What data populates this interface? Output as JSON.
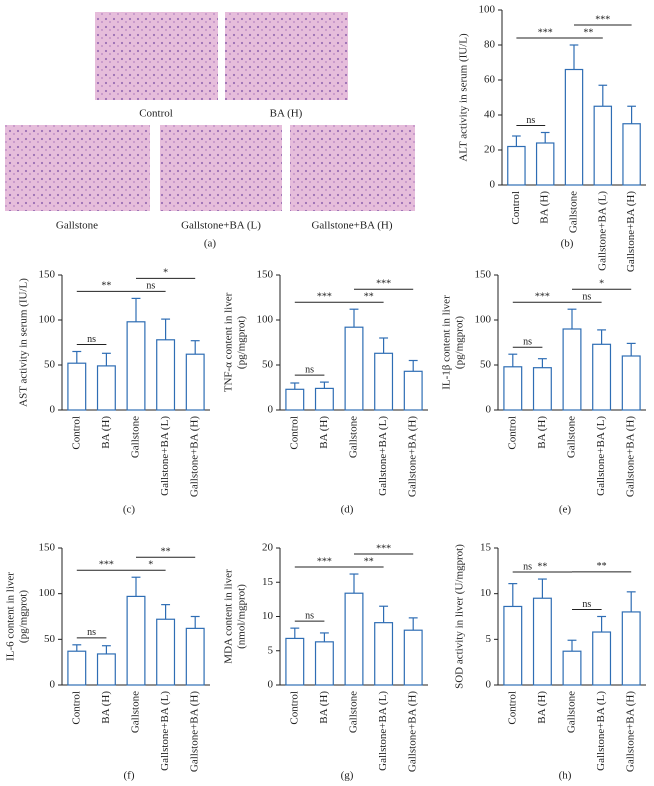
{
  "panel_a": {
    "images": [
      "Control",
      "BA (H)",
      "Gallstone",
      "Gallstone+BA (L)",
      "Gallstone+BA (H)"
    ],
    "caption": "(a)"
  },
  "chart_data": [
    {
      "type": "bar",
      "caption": "(b)",
      "ylabel": [
        "ALT activity in serum (IU/L)"
      ],
      "categories": [
        "Control",
        "BA (H)",
        "Gallstone",
        "Gallstone+BA (L)",
        "Gallstone+BA (H)"
      ],
      "values": [
        22,
        24,
        66,
        45,
        35
      ],
      "errors": [
        6,
        6,
        14,
        12,
        10
      ],
      "ylim": [
        0,
        100
      ],
      "yticks": [
        0,
        20,
        40,
        60,
        80,
        100
      ],
      "significance": [
        "ns",
        "***",
        "**",
        "***"
      ],
      "color": "#2e6db4"
    },
    {
      "type": "bar",
      "caption": "(c)",
      "ylabel": [
        "AST activity in serum (IU/L)"
      ],
      "categories": [
        "Control",
        "BA (H)",
        "Gallstone",
        "Gallstone+BA (L)",
        "Gallstone+BA (H)"
      ],
      "values": [
        52,
        49,
        98,
        78,
        62
      ],
      "errors": [
        13,
        14,
        26,
        23,
        15
      ],
      "ylim": [
        0,
        150
      ],
      "yticks": [
        0,
        50,
        100,
        150
      ],
      "significance": [
        "ns",
        "**",
        "ns",
        "*"
      ],
      "color": "#2e6db4"
    },
    {
      "type": "bar",
      "caption": "(d)",
      "ylabel": [
        "TNF-α content in liver",
        "(pg/mgprot)"
      ],
      "categories": [
        "Control",
        "BA (H)",
        "Gallstone",
        "Gallstone+BA (L)",
        "Gallstone+BA (H)"
      ],
      "values": [
        23,
        24,
        92,
        63,
        43
      ],
      "errors": [
        7,
        7,
        20,
        17,
        12
      ],
      "ylim": [
        0,
        150
      ],
      "yticks": [
        0,
        50,
        100,
        150
      ],
      "significance": [
        "ns",
        "***",
        "**",
        "***"
      ],
      "color": "#2e6db4"
    },
    {
      "type": "bar",
      "caption": "(e)",
      "ylabel": [
        "IL-1β content in liver",
        "(pg/mgprot)"
      ],
      "categories": [
        "Control",
        "BA (H)",
        "Gallstone",
        "Gallstone+BA (L)",
        "Gallstone+BA (H)"
      ],
      "values": [
        48,
        47,
        90,
        73,
        60
      ],
      "errors": [
        14,
        10,
        22,
        16,
        14
      ],
      "ylim": [
        0,
        150
      ],
      "yticks": [
        0,
        50,
        100,
        150
      ],
      "significance": [
        "ns",
        "***",
        "ns",
        "*"
      ],
      "color": "#2e6db4"
    },
    {
      "type": "bar",
      "caption": "(f)",
      "ylabel": [
        "IL-6 content in liver",
        "(pg/mgprot)"
      ],
      "categories": [
        "Control",
        "BA (H)",
        "Gallstone",
        "Gallstone+BA (L)",
        "Gallstone+BA (H)"
      ],
      "values": [
        37,
        34,
        97,
        72,
        62
      ],
      "errors": [
        7,
        9,
        21,
        16,
        13
      ],
      "ylim": [
        0,
        150
      ],
      "yticks": [
        0,
        50,
        100,
        150
      ],
      "significance": [
        "ns",
        "***",
        "*",
        "**"
      ],
      "color": "#2e6db4"
    },
    {
      "type": "bar",
      "caption": "(g)",
      "ylabel": [
        "MDA content in liver",
        "(nmol/mgprot)"
      ],
      "categories": [
        "Control",
        "BA (H)",
        "Gallstone",
        "Gallstone+BA (L)",
        "Gallstone+BA (H)"
      ],
      "values": [
        6.8,
        6.3,
        13.4,
        9.1,
        8
      ],
      "errors": [
        1.5,
        1.3,
        2.8,
        2.4,
        1.8
      ],
      "ylim": [
        0,
        20
      ],
      "yticks": [
        0,
        5,
        10,
        15,
        20
      ],
      "significance": [
        "ns",
        "***",
        "**",
        "***"
      ],
      "color": "#2e6db4"
    },
    {
      "type": "bar",
      "caption": "(h)",
      "ylabel": [
        "SOD activity in liver (U/mgprot)"
      ],
      "categories": [
        "Control",
        "BA (H)",
        "Gallstone",
        "Gallstone+BA (L)",
        "Gallstone+BA (H)"
      ],
      "values": [
        8.6,
        9.5,
        3.7,
        5.8,
        8
      ],
      "errors": [
        2.5,
        2.1,
        1.2,
        1.7,
        2.2
      ],
      "ylim": [
        0,
        15
      ],
      "yticks": [
        0,
        5,
        10,
        15
      ],
      "significance": [
        "ns",
        "**",
        "ns",
        "**"
      ],
      "color": "#2e6db4"
    }
  ]
}
